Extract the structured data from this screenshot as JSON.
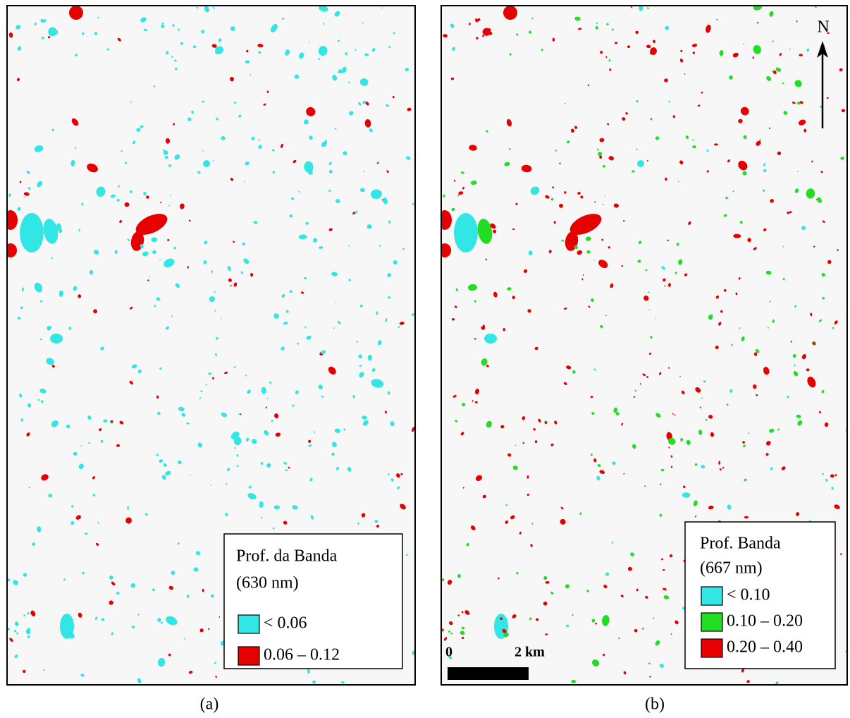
{
  "panels": [
    {
      "caption": "(a)",
      "legend": {
        "title": "Prof. da Banda",
        "subtitle": "(630 nm)",
        "items": [
          {
            "label": "< 0.06",
            "color": "#33e6e6"
          },
          {
            "label": "0.06 – 0.12",
            "color": "#e60000"
          }
        ]
      }
    },
    {
      "caption": "(b)",
      "legend": {
        "title": "Prof. Banda",
        "subtitle": "(667 nm)",
        "items": [
          {
            "label": "< 0.10",
            "color": "#33e6e6"
          },
          {
            "label": "0.10 – 0.20",
            "color": "#22dd22"
          },
          {
            "label": "0.20 – 0.40",
            "color": "#e60000"
          }
        ]
      },
      "scale_bar": {
        "start": "0",
        "end": "2 km"
      },
      "north": "N"
    }
  ]
}
